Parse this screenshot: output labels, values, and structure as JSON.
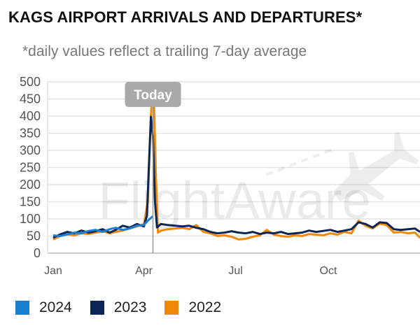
{
  "title": "KAGS AIRPORT ARRIVALS AND DEPARTURES*",
  "subtitle": "*daily values reflect a trailing 7-day average",
  "watermark": "FlightAware",
  "chart_data": {
    "type": "line",
    "x_axis": "day of year",
    "xlim": [
      "Jan 1",
      "Dec 31"
    ],
    "ylim": [
      0,
      500
    ],
    "y_ticks": [
      "500",
      "450",
      "400",
      "350",
      "300",
      "250",
      "200",
      "150",
      "100",
      "50",
      "0"
    ],
    "x_ticks": [
      "Jan",
      "Apr",
      "Jul",
      "Oct"
    ],
    "x_tick_dates": [
      "Jan 1",
      "Apr 1",
      "Jul 1",
      "Oct 1"
    ],
    "grid": true,
    "legend_position": "bottom",
    "marker": {
      "label": "Today",
      "date": "Apr 10"
    },
    "series": [
      {
        "name": "2024",
        "color": "#1a7fd0",
        "points": [
          [
            "Jan 1",
            52
          ],
          [
            "Jan 8",
            50
          ],
          [
            "Jan 15",
            55
          ],
          [
            "Jan 22",
            60
          ],
          [
            "Jan 29",
            58
          ],
          [
            "Feb 5",
            65
          ],
          [
            "Feb 12",
            68
          ],
          [
            "Feb 19",
            62
          ],
          [
            "Feb 26",
            70
          ],
          [
            "Mar 4",
            74
          ],
          [
            "Mar 11",
            68
          ],
          [
            "Mar 18",
            72
          ],
          [
            "Mar 25",
            80
          ],
          [
            "Apr 1",
            82
          ],
          [
            "Apr 5",
            95
          ],
          [
            "Apr 10",
            108
          ]
        ]
      },
      {
        "name": "2023",
        "color": "#0b2656",
        "points": [
          [
            "Jan 1",
            45
          ],
          [
            "Jan 8",
            55
          ],
          [
            "Jan 15",
            62
          ],
          [
            "Jan 22",
            58
          ],
          [
            "Jan 29",
            66
          ],
          [
            "Feb 5",
            60
          ],
          [
            "Feb 12",
            64
          ],
          [
            "Feb 19",
            70
          ],
          [
            "Feb 26",
            60
          ],
          [
            "Mar 4",
            68
          ],
          [
            "Mar 11",
            80
          ],
          [
            "Mar 18",
            75
          ],
          [
            "Mar 25",
            85
          ],
          [
            "Apr 1",
            78
          ],
          [
            "Apr 4",
            110
          ],
          [
            "Apr 6",
            260
          ],
          [
            "Apr 8",
            398
          ],
          [
            "Apr 10",
            340
          ],
          [
            "Apr 12",
            150
          ],
          [
            "Apr 14",
            75
          ],
          [
            "Apr 18",
            85
          ],
          [
            "Apr 25",
            82
          ],
          [
            "May 2",
            80
          ],
          [
            "May 9",
            78
          ],
          [
            "May 16",
            80
          ],
          [
            "May 23",
            74
          ],
          [
            "May 30",
            70
          ],
          [
            "Jun 6",
            62
          ],
          [
            "Jun 13",
            58
          ],
          [
            "Jun 20",
            60
          ],
          [
            "Jun 27",
            64
          ],
          [
            "Jul 4",
            60
          ],
          [
            "Jul 11",
            58
          ],
          [
            "Jul 18",
            62
          ],
          [
            "Jul 25",
            56
          ],
          [
            "Aug 1",
            60
          ],
          [
            "Aug 8",
            58
          ],
          [
            "Aug 15",
            62
          ],
          [
            "Aug 22",
            56
          ],
          [
            "Aug 29",
            58
          ],
          [
            "Sep 5",
            60
          ],
          [
            "Sep 12",
            66
          ],
          [
            "Sep 19",
            62
          ],
          [
            "Sep 26",
            65
          ],
          [
            "Oct 3",
            68
          ],
          [
            "Oct 10",
            62
          ],
          [
            "Oct 17",
            66
          ],
          [
            "Oct 24",
            70
          ],
          [
            "Oct 31",
            90
          ],
          [
            "Nov 7",
            85
          ],
          [
            "Nov 14",
            75
          ],
          [
            "Nov 21",
            90
          ],
          [
            "Nov 28",
            88
          ],
          [
            "Dec 5",
            70
          ],
          [
            "Dec 12",
            68
          ],
          [
            "Dec 19",
            70
          ],
          [
            "Dec 26",
            72
          ],
          [
            "Dec 31",
            62
          ]
        ]
      },
      {
        "name": "2022",
        "color": "#f0890a",
        "points": [
          [
            "Jan 1",
            40
          ],
          [
            "Jan 8",
            50
          ],
          [
            "Jan 15",
            55
          ],
          [
            "Jan 22",
            52
          ],
          [
            "Jan 29",
            58
          ],
          [
            "Feb 5",
            56
          ],
          [
            "Feb 12",
            60
          ],
          [
            "Feb 19",
            64
          ],
          [
            "Feb 26",
            58
          ],
          [
            "Mar 4",
            62
          ],
          [
            "Mar 11",
            66
          ],
          [
            "Mar 18",
            72
          ],
          [
            "Mar 25",
            78
          ],
          [
            "Apr 1",
            85
          ],
          [
            "Apr 5",
            150
          ],
          [
            "Apr 7",
            330
          ],
          [
            "Apr 9",
            470
          ],
          [
            "Apr 11",
            440
          ],
          [
            "Apr 13",
            220
          ],
          [
            "Apr 15",
            60
          ],
          [
            "Apr 18",
            66
          ],
          [
            "Apr 25",
            70
          ],
          [
            "May 2",
            72
          ],
          [
            "May 9",
            74
          ],
          [
            "May 16",
            70
          ],
          [
            "May 23",
            82
          ],
          [
            "May 30",
            62
          ],
          [
            "Jun 6",
            58
          ],
          [
            "Jun 13",
            50
          ],
          [
            "Jun 20",
            52
          ],
          [
            "Jun 27",
            48
          ],
          [
            "Jul 4",
            40
          ],
          [
            "Jul 11",
            42
          ],
          [
            "Jul 18",
            48
          ],
          [
            "Jul 25",
            52
          ],
          [
            "Aug 1",
            68
          ],
          [
            "Aug 8",
            54
          ],
          [
            "Aug 15",
            50
          ],
          [
            "Aug 22",
            48
          ],
          [
            "Aug 29",
            52
          ],
          [
            "Sep 5",
            50
          ],
          [
            "Sep 12",
            56
          ],
          [
            "Sep 19",
            54
          ],
          [
            "Sep 26",
            52
          ],
          [
            "Oct 3",
            58
          ],
          [
            "Oct 10",
            54
          ],
          [
            "Oct 17",
            62
          ],
          [
            "Oct 24",
            58
          ],
          [
            "Oct 31",
            95
          ],
          [
            "Nov 7",
            80
          ],
          [
            "Nov 14",
            72
          ],
          [
            "Nov 21",
            86
          ],
          [
            "Nov 28",
            82
          ],
          [
            "Dec 5",
            60
          ],
          [
            "Dec 12",
            62
          ],
          [
            "Dec 19",
            58
          ],
          [
            "Dec 26",
            60
          ],
          [
            "Dec 31",
            45
          ]
        ]
      }
    ]
  }
}
